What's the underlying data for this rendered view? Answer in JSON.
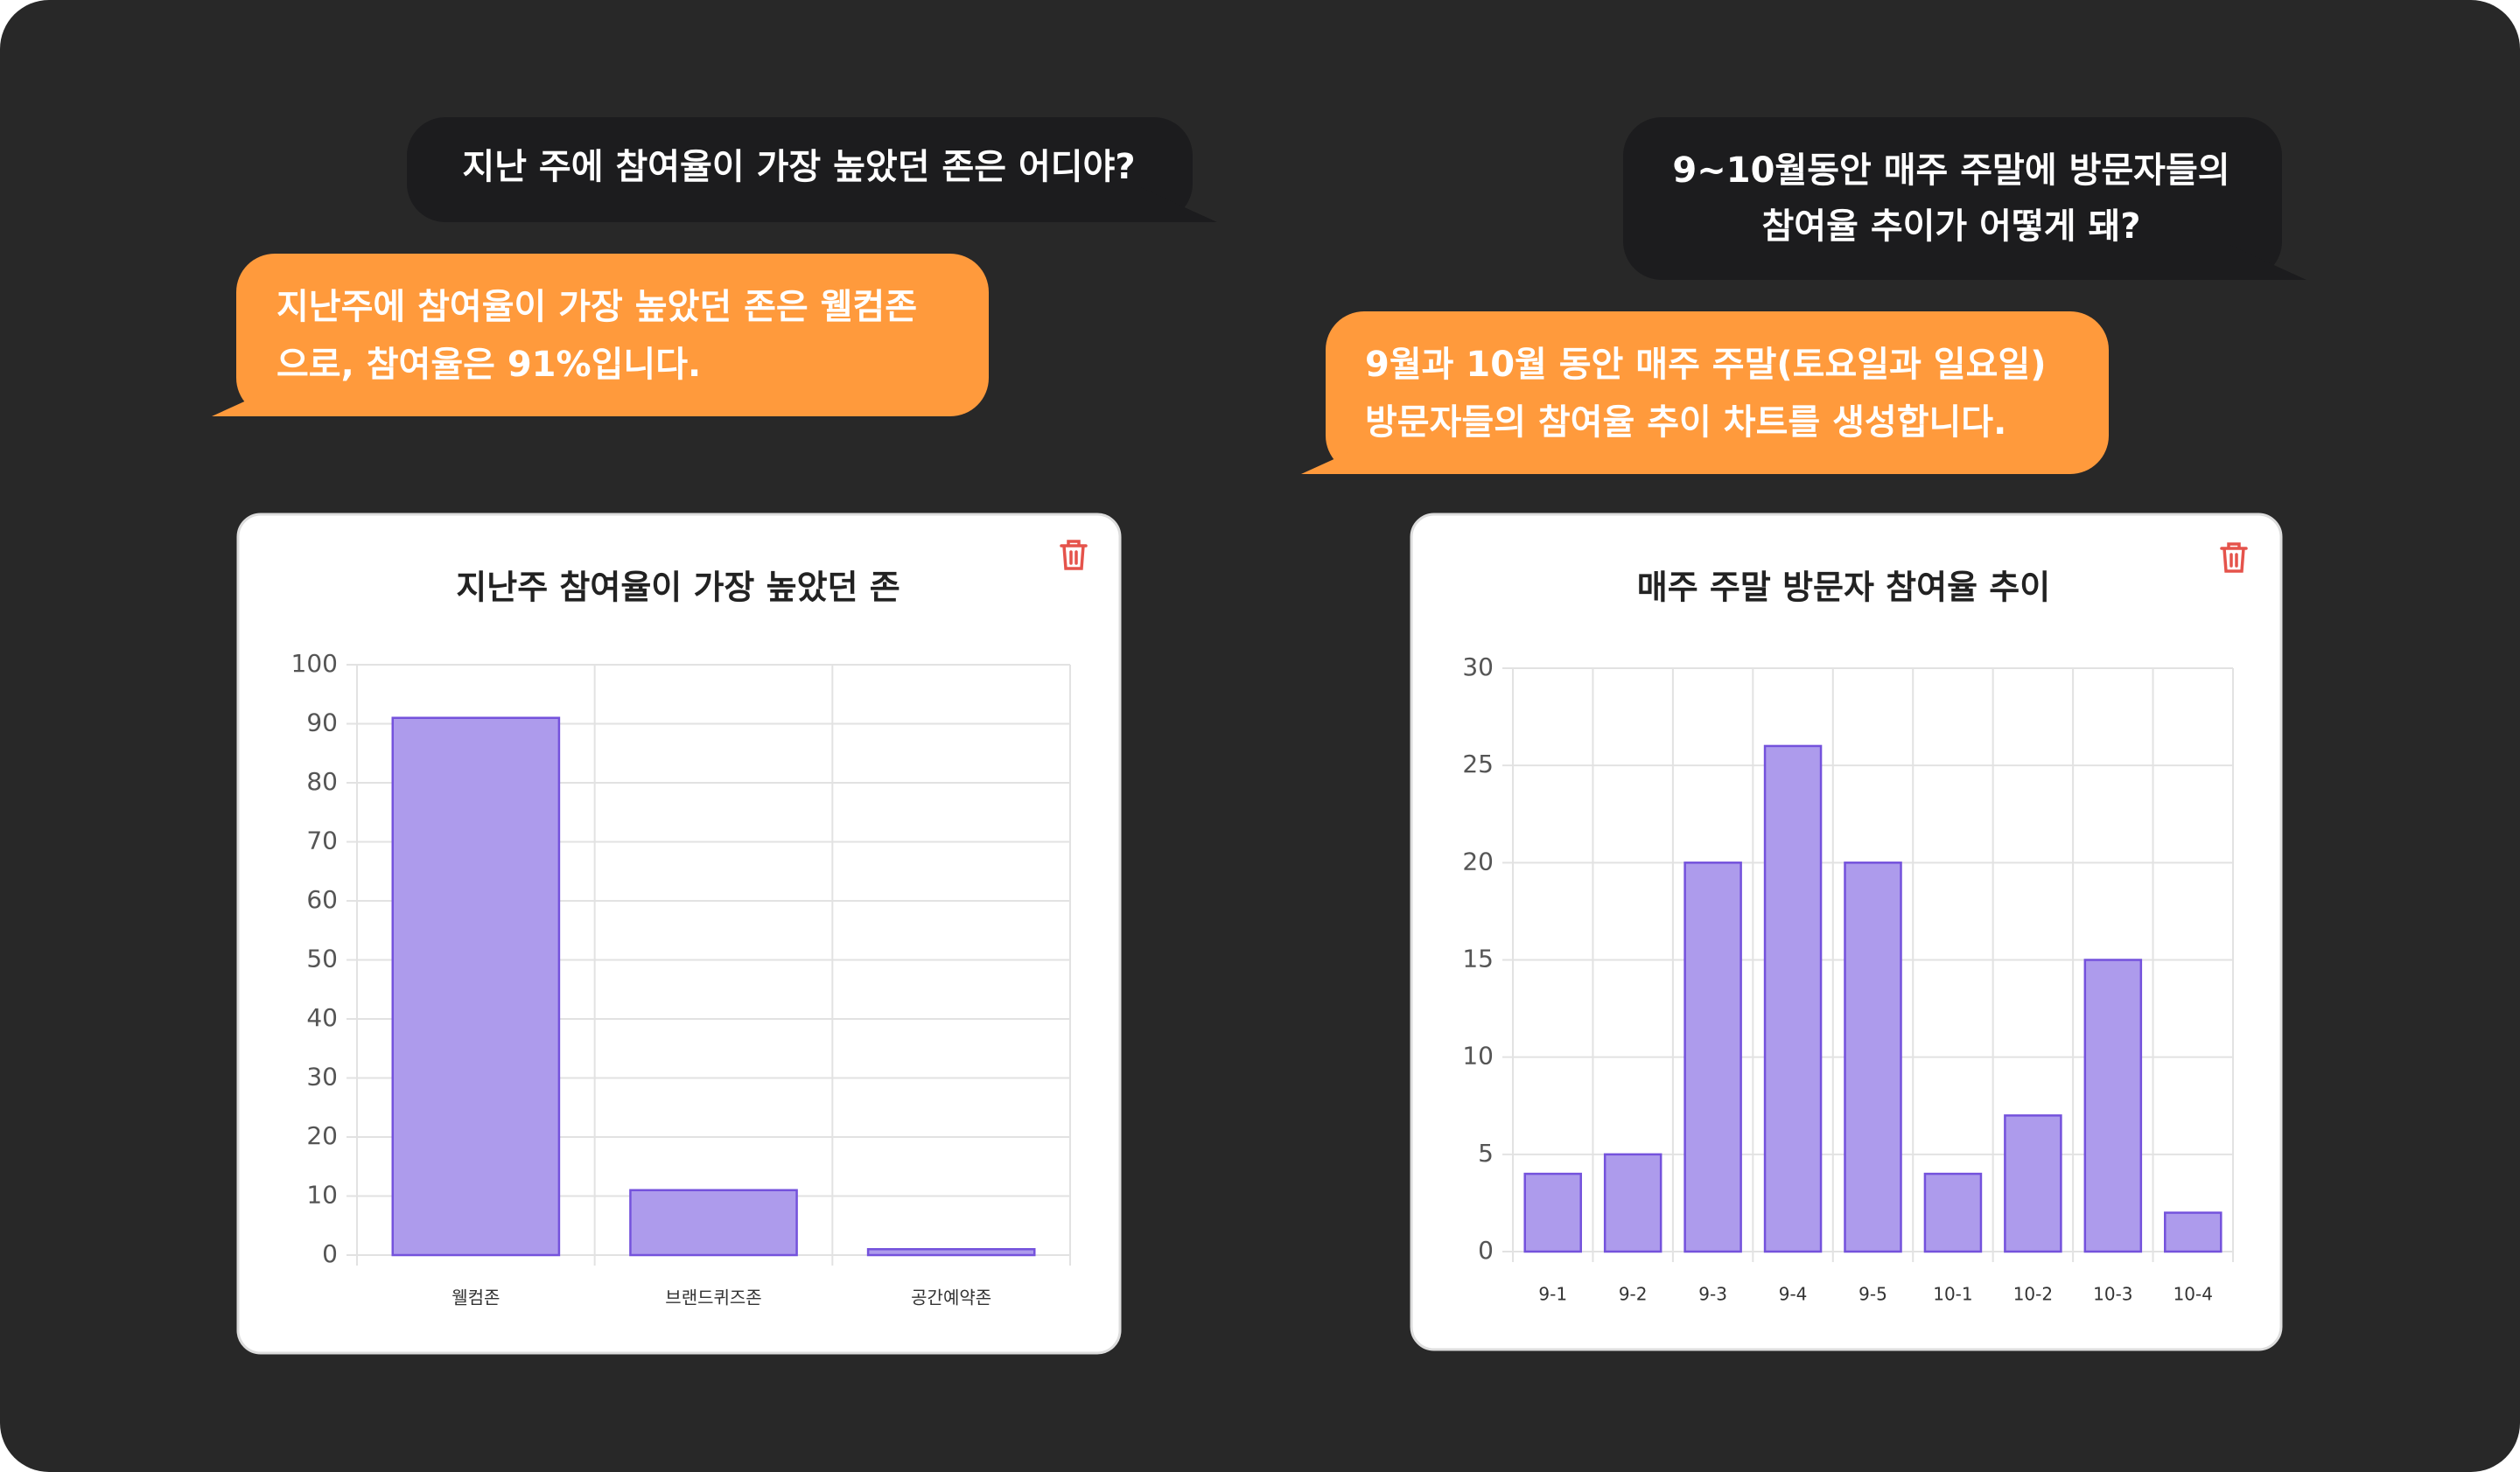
{
  "messages": [
    {
      "role": "user",
      "lines": [
        "지난 주에 참여율이 가장 높았던 존은 어디야?"
      ]
    },
    {
      "role": "assistant",
      "lines": [
        "지난주에 참여율이 가장 높았던 존은 웰컴존",
        "으로, 참여율은 91%입니다."
      ]
    },
    {
      "role": "user",
      "lines": [
        "9~10월동안 매주 주말에 방문자들의",
        "참여율 추이가 어떻게 돼?"
      ]
    },
    {
      "role": "assistant",
      "lines": [
        "9월과 10월 동안 매주 주말(토요일과 일요일)",
        "방문자들의 참여율 추이 차트를 생성합니다."
      ]
    }
  ],
  "chart_data": [
    {
      "type": "bar",
      "title": "지난주 참여율이 가장 높았던 존",
      "categories": [
        "웰컴존",
        "브랜드퀴즈존",
        "공간예약존"
      ],
      "values": [
        91,
        11,
        1
      ],
      "color": "#ad9bec",
      "edgecolor": "#7452dc",
      "ylim": [
        0,
        100
      ],
      "yticks": [
        0,
        10,
        20,
        30,
        40,
        50,
        60,
        70,
        80,
        90,
        100
      ],
      "grid": true
    },
    {
      "type": "bar",
      "title": "매주 주말 방문자 참여율 추이",
      "categories": [
        "9-1",
        "9-2",
        "9-3",
        "9-4",
        "9-5",
        "10-1",
        "10-2",
        "10-3",
        "10-4"
      ],
      "values": [
        4,
        5,
        20,
        26,
        20,
        4,
        7,
        15,
        2
      ],
      "color": "#ad9bec",
      "edgecolor": "#7452dc",
      "ylim": [
        0,
        30
      ],
      "yticks": [
        0,
        5,
        10,
        15,
        20,
        25,
        30
      ],
      "grid": true
    }
  ]
}
